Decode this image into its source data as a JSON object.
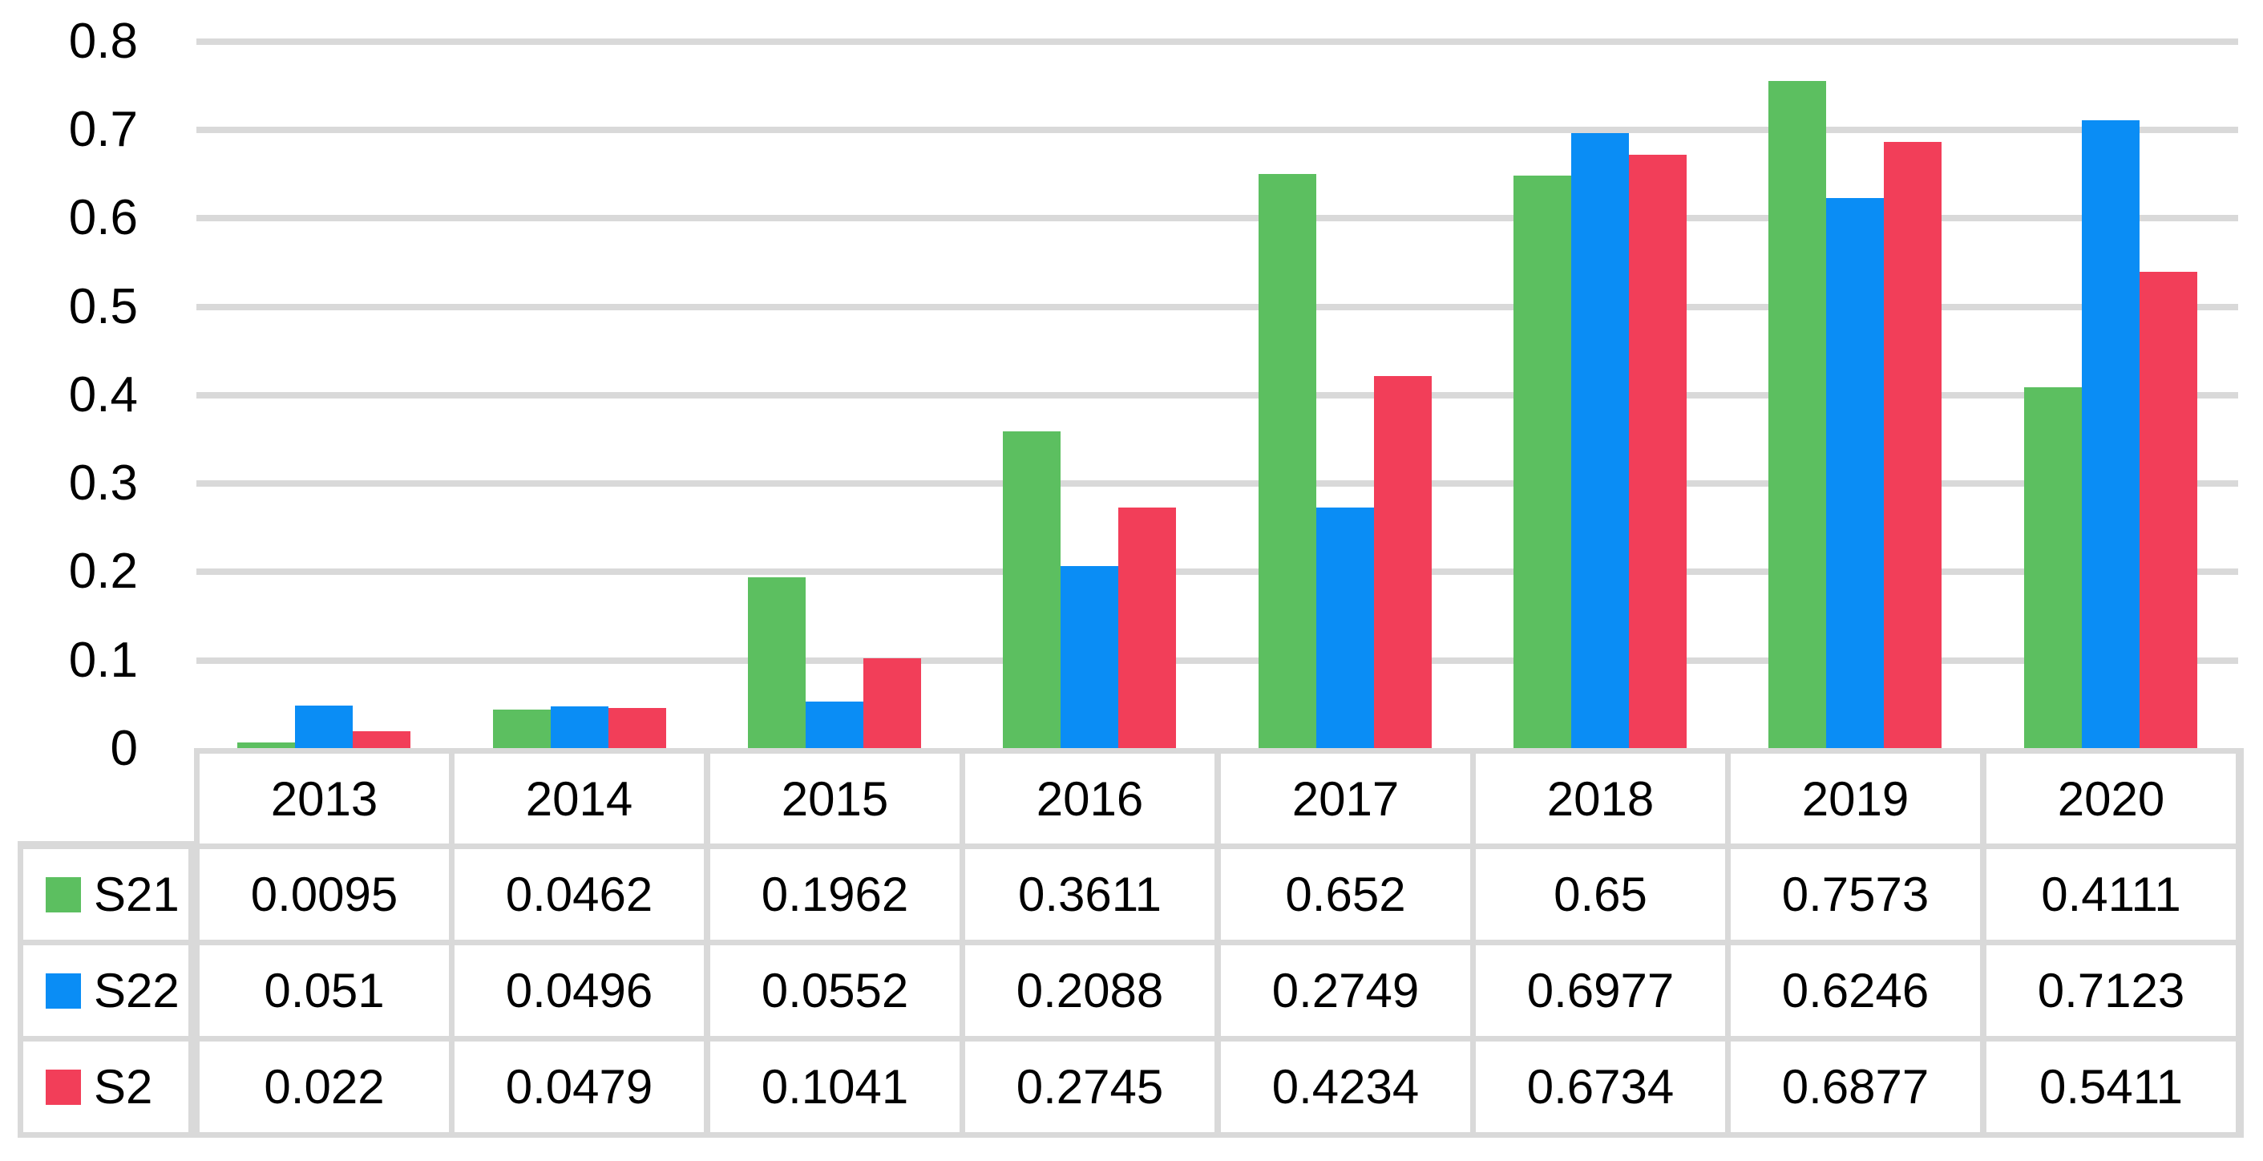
{
  "chart_data": {
    "type": "bar",
    "title": "",
    "xlabel": "",
    "ylabel": "",
    "categories": [
      "2013",
      "2014",
      "2015",
      "2016",
      "2017",
      "2018",
      "2019",
      "2020"
    ],
    "series": [
      {
        "name": "S21",
        "color": "#5CBF60",
        "values": [
          0.0095,
          0.0462,
          0.1962,
          0.3611,
          0.652,
          0.65,
          0.7573,
          0.4111
        ]
      },
      {
        "name": "S22",
        "color": "#0A8DF5",
        "values": [
          0.051,
          0.0496,
          0.0552,
          0.2088,
          0.2749,
          0.6977,
          0.6246,
          0.7123
        ]
      },
      {
        "name": "S2",
        "color": "#F23E59",
        "values": [
          0.022,
          0.0479,
          0.1041,
          0.2745,
          0.4234,
          0.6734,
          0.6877,
          0.5411
        ]
      }
    ],
    "ylim": [
      0,
      0.8
    ],
    "yticks": [
      0,
      0.1,
      0.2,
      0.3,
      0.4,
      0.5,
      0.6,
      0.7,
      0.8
    ],
    "ytick_labels": [
      "0",
      "0.1",
      "0.2",
      "0.3",
      "0.4",
      "0.5",
      "0.6",
      "0.7",
      "0.8"
    ],
    "grid": true,
    "gridline_color": "#D9D9D9",
    "legend_position": "data table left column",
    "data_table_shown": true
  },
  "colors": {
    "background": "#FFFFFF",
    "gridline": "#D9D9D9",
    "table_border": "#D9D9D9",
    "text": "#000000"
  }
}
